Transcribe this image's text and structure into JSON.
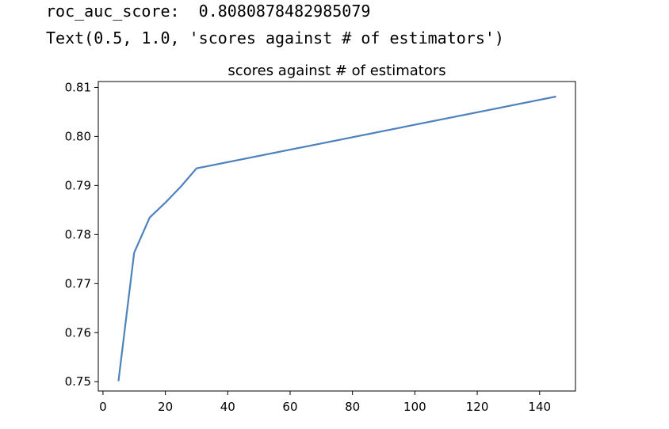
{
  "output": {
    "line1": "roc_auc_score:  0.8080878482985079",
    "line2": "Text(0.5, 1.0, 'scores against # of estimators')"
  },
  "chart_data": {
    "type": "line",
    "title": "scores against # of estimators",
    "xlabel": "",
    "ylabel": "",
    "xlim": [
      -1.5,
      151.5
    ],
    "ylim": [
      0.7481,
      0.8112
    ],
    "xticks": [
      0,
      20,
      40,
      60,
      80,
      100,
      120,
      140
    ],
    "xtick_labels": [
      "0",
      "20",
      "40",
      "60",
      "80",
      "100",
      "120",
      "140"
    ],
    "yticks": [
      0.75,
      0.76,
      0.77,
      0.78,
      0.79,
      0.8,
      0.81
    ],
    "ytick_labels": [
      "0.75",
      "0.76",
      "0.77",
      "0.78",
      "0.79",
      "0.80",
      "0.81"
    ],
    "grid": false,
    "color": "#4e81bd",
    "series": [
      {
        "x": [
          5,
          10,
          15,
          20,
          25,
          30,
          145
        ],
        "y": [
          0.7503,
          0.7763,
          0.7835,
          0.7865,
          0.7898,
          0.7935,
          0.8081
        ]
      }
    ]
  }
}
